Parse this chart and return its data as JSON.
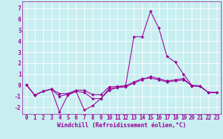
{
  "xlabel": "Windchill (Refroidissement éolien,°C)",
  "bg_color": "#c8eef0",
  "grid_color": "#aadddd",
  "line_color": "#990099",
  "xlim": [
    -0.5,
    23.5
  ],
  "ylim": [
    -2.6,
    7.6
  ],
  "yticks": [
    -2,
    -1,
    0,
    1,
    2,
    3,
    4,
    5,
    6,
    7
  ],
  "xticks": [
    0,
    1,
    2,
    3,
    4,
    5,
    6,
    7,
    8,
    9,
    10,
    11,
    12,
    13,
    14,
    15,
    16,
    17,
    18,
    19,
    20,
    21,
    22,
    23
  ],
  "line1_x": [
    0,
    1,
    2,
    3,
    4,
    5,
    6,
    7,
    8,
    9,
    10,
    11,
    12,
    13,
    14,
    15,
    16,
    17,
    18,
    19,
    20,
    21,
    22,
    23
  ],
  "line1_y": [
    0.05,
    -0.9,
    -0.55,
    -0.35,
    -2.4,
    -0.9,
    -0.55,
    -2.25,
    -1.85,
    -1.2,
    -0.45,
    -0.2,
    0.0,
    4.4,
    4.4,
    6.7,
    5.2,
    2.6,
    2.1,
    1.0,
    0.0,
    -0.05,
    -0.65,
    -0.65
  ],
  "line2_x": [
    0,
    1,
    2,
    3,
    4,
    5,
    6,
    7,
    8,
    9,
    10,
    11,
    12,
    13,
    14,
    15,
    16,
    17,
    18,
    19,
    20,
    21,
    22,
    23
  ],
  "line2_y": [
    0.05,
    -0.9,
    -0.55,
    -0.35,
    -1.0,
    -0.8,
    -0.55,
    -0.65,
    -1.2,
    -1.2,
    -0.3,
    -0.2,
    -0.15,
    0.2,
    0.5,
    0.8,
    0.6,
    0.4,
    0.5,
    0.6,
    -0.05,
    -0.1,
    -0.65,
    -0.65
  ],
  "line3_x": [
    0,
    1,
    2,
    3,
    4,
    5,
    6,
    7,
    8,
    9,
    10,
    11,
    12,
    13,
    14,
    15,
    16,
    17,
    18,
    19,
    20,
    21,
    22,
    23
  ],
  "line3_y": [
    0.05,
    -0.9,
    -0.55,
    -0.35,
    -0.75,
    -0.75,
    -0.45,
    -0.45,
    -0.85,
    -0.85,
    -0.15,
    -0.1,
    -0.05,
    0.3,
    0.6,
    0.65,
    0.5,
    0.3,
    0.4,
    0.5,
    -0.05,
    -0.1,
    -0.65,
    -0.65
  ],
  "xlabel_fontsize": 6,
  "tick_fontsize": 5.5
}
